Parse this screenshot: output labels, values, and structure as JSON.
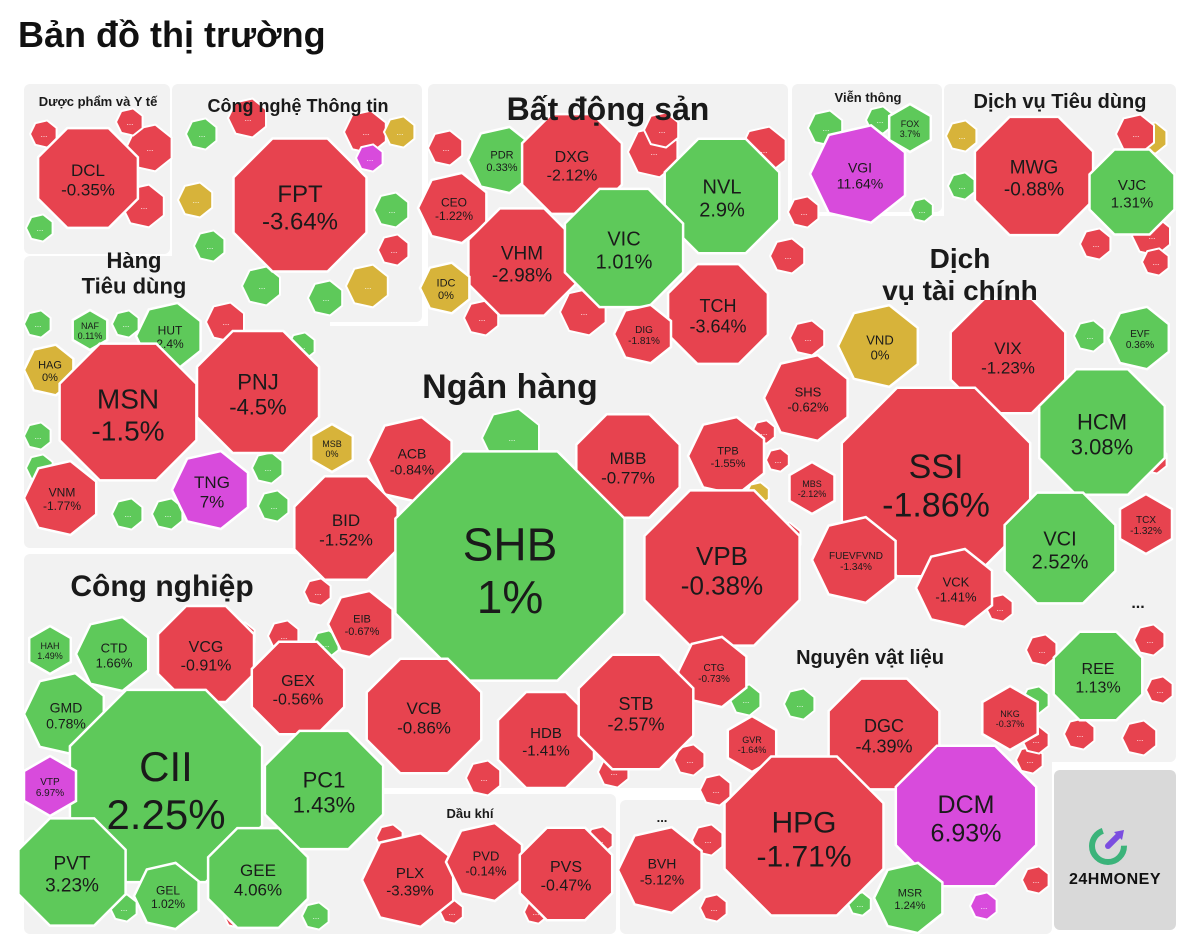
{
  "title": "Bản đồ thị trường",
  "logo_text": "24HMONEY",
  "colors": {
    "up": "#5ec95a",
    "down": "#e7434f",
    "flat": "#d7b33a",
    "ceiling": "#d84bdc",
    "panel": "#f2f2f2",
    "border": "#ffffff"
  },
  "chart_data": {
    "type": "treemap",
    "unit": "%",
    "sectors": [
      {
        "name": "Dược phẩm và Y tế",
        "stocks": [
          {
            "ticker": "DCL",
            "change": -0.35
          }
        ]
      },
      {
        "name": "Công nghệ Thông tin",
        "stocks": [
          {
            "ticker": "FPT",
            "change": -3.64
          }
        ]
      },
      {
        "name": "Bất động sản",
        "stocks": [
          {
            "ticker": "PDR",
            "change": 0.33
          },
          {
            "ticker": "DXG",
            "change": -2.12
          },
          {
            "ticker": "NVL",
            "change": 2.9
          },
          {
            "ticker": "CEO",
            "change": -1.22
          },
          {
            "ticker": "VHM",
            "change": -2.98
          },
          {
            "ticker": "VIC",
            "change": 1.01
          },
          {
            "ticker": "IDC",
            "change": 0
          },
          {
            "ticker": "TCH",
            "change": -3.64
          },
          {
            "ticker": "DIG",
            "change": -1.81
          }
        ]
      },
      {
        "name": "Viễn thông",
        "stocks": [
          {
            "ticker": "VGI",
            "change": 11.64
          },
          {
            "ticker": "FOX",
            "change": 3.7
          }
        ]
      },
      {
        "name": "Dịch vụ Tiêu dùng",
        "stocks": [
          {
            "ticker": "MWG",
            "change": -0.88
          },
          {
            "ticker": "VJC",
            "change": 1.31
          }
        ]
      },
      {
        "name": "Hàng Tiêu dùng",
        "stocks": [
          {
            "ticker": "NAF",
            "change": 0.11
          },
          {
            "ticker": "HUT",
            "change": 2.4
          },
          {
            "ticker": "HAG",
            "change": 0
          },
          {
            "ticker": "MSN",
            "change": -1.5
          },
          {
            "ticker": "PNJ",
            "change": -4.5
          },
          {
            "ticker": "TNG",
            "change": 7
          },
          {
            "ticker": "VNM",
            "change": -1.77
          }
        ]
      },
      {
        "name": "Dịch vụ tài chính",
        "stocks": [
          {
            "ticker": "VND",
            "change": 0
          },
          {
            "ticker": "VIX",
            "change": -1.23
          },
          {
            "ticker": "EVF",
            "change": 0.36
          },
          {
            "ticker": "SHS",
            "change": -0.62
          },
          {
            "ticker": "HCM",
            "change": 3.08
          },
          {
            "ticker": "SSI",
            "change": -1.86
          },
          {
            "ticker": "MBS",
            "change": -2.12
          },
          {
            "ticker": "FUEVFVND",
            "change": -1.34
          },
          {
            "ticker": "VCI",
            "change": 2.52
          },
          {
            "ticker": "TCX",
            "change": -1.32
          },
          {
            "ticker": "VCK",
            "change": -1.41
          }
        ]
      },
      {
        "name": "Ngân hàng",
        "stocks": [
          {
            "ticker": "MSB",
            "change": 0
          },
          {
            "ticker": "ACB",
            "change": -0.84
          },
          {
            "ticker": "MBB",
            "change": -0.77
          },
          {
            "ticker": "TPB",
            "change": -1.55
          },
          {
            "ticker": "BID",
            "change": -1.52
          },
          {
            "ticker": "SHB",
            "change": 1
          },
          {
            "ticker": "VPB",
            "change": -0.38
          },
          {
            "ticker": "EIB",
            "change": -0.67
          },
          {
            "ticker": "CTG",
            "change": -0.73
          },
          {
            "ticker": "VCB",
            "change": -0.86
          },
          {
            "ticker": "HDB",
            "change": -1.41
          },
          {
            "ticker": "STB",
            "change": -2.57
          }
        ]
      },
      {
        "name": "Công nghiệp",
        "stocks": [
          {
            "ticker": "HAH",
            "change": 1.49
          },
          {
            "ticker": "CTD",
            "change": 1.66
          },
          {
            "ticker": "VCG",
            "change": -0.91
          },
          {
            "ticker": "GEX",
            "change": -0.56
          },
          {
            "ticker": "GMD",
            "change": 0.78
          },
          {
            "ticker": "CII",
            "change": 2.25
          },
          {
            "ticker": "PC1",
            "change": 1.43
          },
          {
            "ticker": "VTP",
            "change": 6.97
          },
          {
            "ticker": "PVT",
            "change": 3.23
          },
          {
            "ticker": "GEL",
            "change": 1.02
          },
          {
            "ticker": "GEE",
            "change": 4.06
          }
        ]
      },
      {
        "name": "Dầu khí",
        "stocks": [
          {
            "ticker": "PLX",
            "change": -3.39
          },
          {
            "ticker": "PVD",
            "change": -0.14
          },
          {
            "ticker": "PVS",
            "change": -0.47
          }
        ]
      },
      {
        "name": "...",
        "stocks": [
          {
            "ticker": "BVH",
            "change": -5.12
          }
        ]
      },
      {
        "name": "Nguyên vật liệu",
        "stocks": [
          {
            "ticker": "DGC",
            "change": -4.39
          },
          {
            "ticker": "NKG",
            "change": -0.37
          },
          {
            "ticker": "GVR",
            "change": -1.64
          },
          {
            "ticker": "HPG",
            "change": -1.71
          },
          {
            "ticker": "DCM",
            "change": 6.93
          },
          {
            "ticker": "MSR",
            "change": 1.24
          }
        ]
      },
      {
        "name": "...",
        "stocks": [
          {
            "ticker": "REE",
            "change": 1.13
          }
        ]
      }
    ]
  }
}
